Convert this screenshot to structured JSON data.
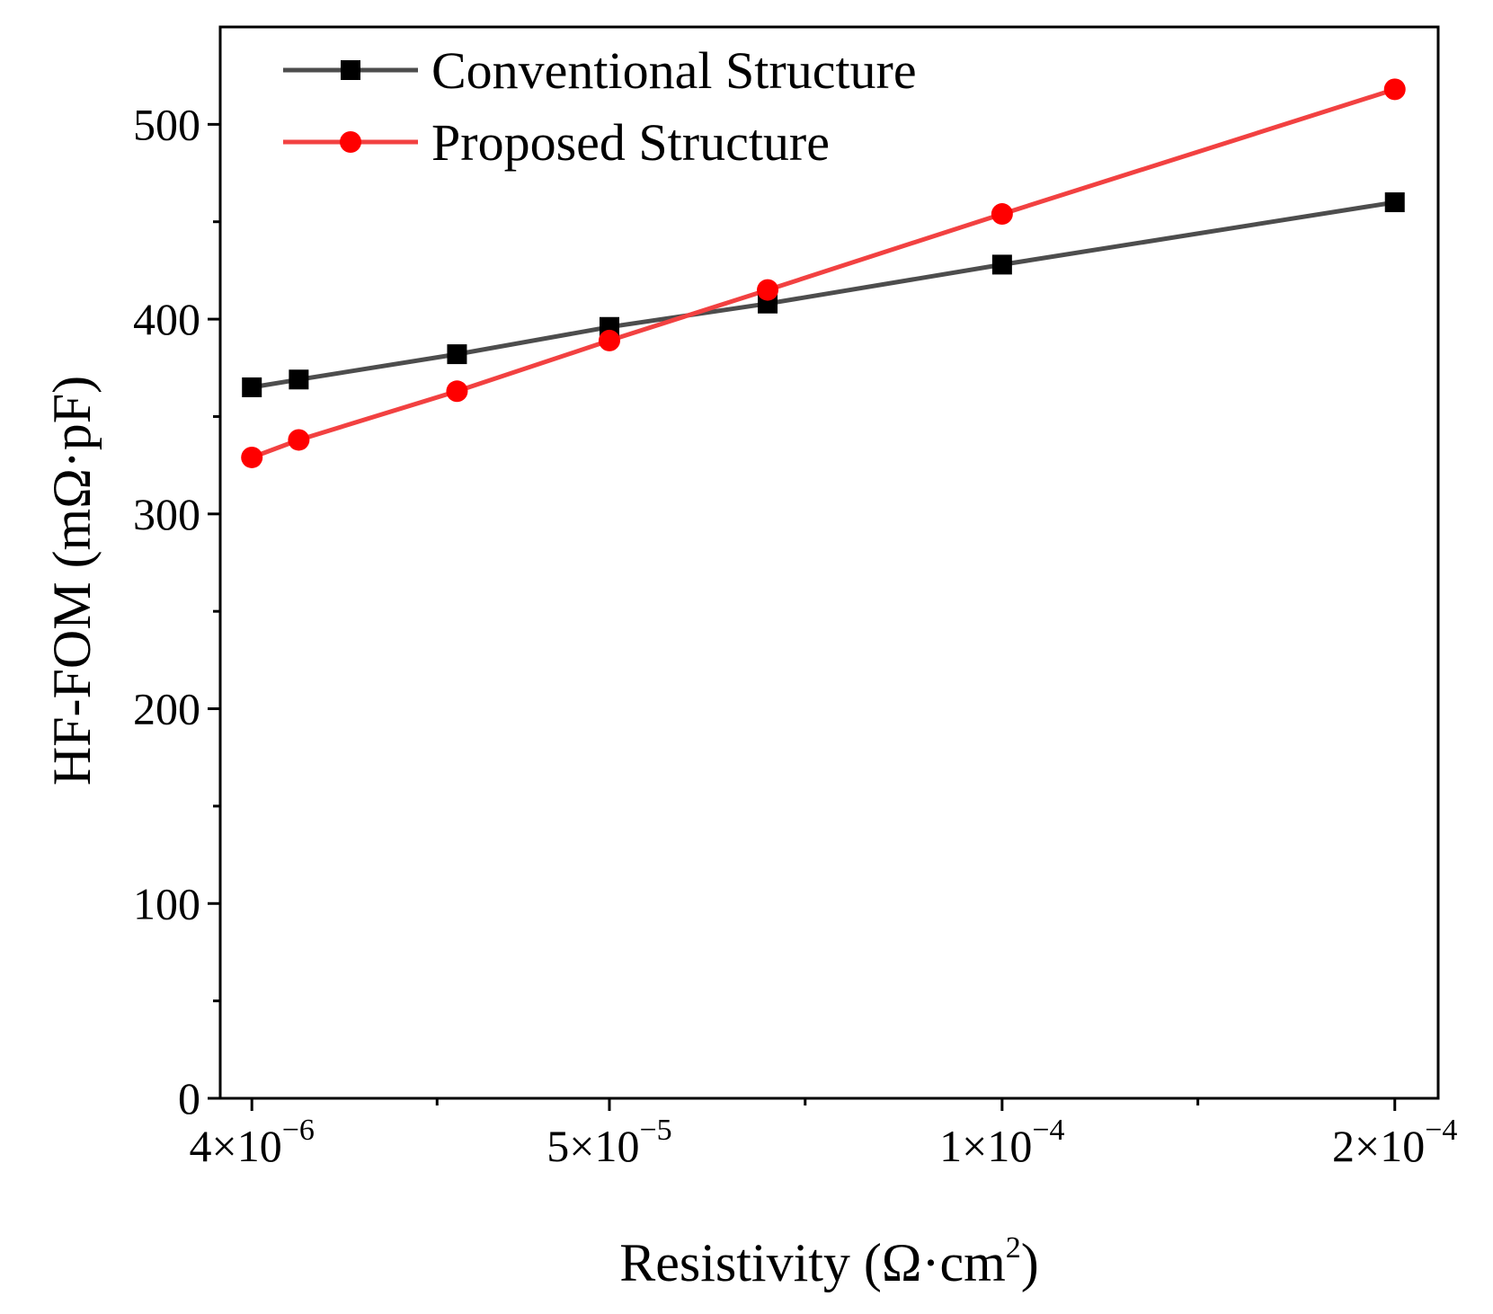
{
  "chart_data": {
    "type": "line",
    "title": "",
    "xlabel": "Resistivity (Ω·cm",
    "xlabel_sup": "2",
    "xlabel_close": ")",
    "ylabel": "HF-FOM (mΩ·pF)",
    "xscale": "categorical",
    "x_positions": [
      0,
      0.4,
      1.75,
      3.05,
      4.4,
      6.4,
      9.75
    ],
    "x": [
      "4e-6",
      "5e-6",
      "2e-5",
      "5e-5",
      "7e-5",
      "1e-4",
      "2e-4"
    ],
    "xticks": [
      {
        "pos": 0,
        "mantissa": "4",
        "times": "×",
        "base": "10",
        "exponent": "−6"
      },
      {
        "pos": 3.05,
        "mantissa": "5",
        "times": "×",
        "base": "10",
        "exponent": "−5"
      },
      {
        "pos": 6.4,
        "mantissa": "1",
        "times": "×",
        "base": "10",
        "exponent": "−4"
      },
      {
        "pos": 9.75,
        "mantissa": "2",
        "times": "×",
        "base": "10",
        "exponent": "−4"
      }
    ],
    "x_minor_ticks": [
      1.58,
      4.72,
      8.07
    ],
    "xlim": [
      -0.27,
      10.12
    ],
    "ylim": [
      0,
      550
    ],
    "yticks": [
      "0",
      "100",
      "200",
      "300",
      "400",
      "500"
    ],
    "ytick_values": [
      0,
      100,
      200,
      300,
      400,
      500
    ],
    "y_minor_ticks": [
      50,
      150,
      250,
      350,
      450
    ],
    "grid": false,
    "legend_position": "top-left",
    "series": [
      {
        "name": "Conventional Structure",
        "color": "#4d4d4d",
        "marker": "square",
        "marker_color": "#000000",
        "values": [
          365,
          369,
          382,
          396,
          408,
          428,
          460
        ]
      },
      {
        "name": "Proposed Structure",
        "color": "#f24141",
        "marker": "circle",
        "marker_color": "#ff0000",
        "values": [
          329,
          338,
          363,
          389,
          415,
          454,
          518
        ]
      }
    ]
  }
}
